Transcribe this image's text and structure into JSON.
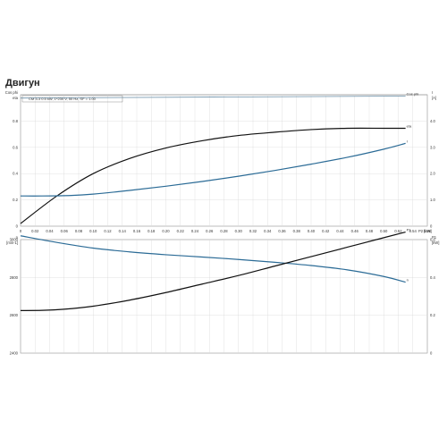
{
  "page": {
    "title": "Двигун"
  },
  "chart_data": [
    {
      "type": "line",
      "info": "CM 3-3   0.5 kW,  1*230 V, 50 Hz, SF = 1.00",
      "x_unit": "P2 [kW]",
      "x_ticks": [
        "0",
        "0.02",
        "0.04",
        "0.06",
        "0.08",
        "0.10",
        "0.12",
        "0.14",
        "0.16",
        "0.18",
        "0.20",
        "0.22",
        "0.24",
        "0.26",
        "0.28",
        "0.30",
        "0.32",
        "0.34",
        "0.36",
        "0.38",
        "0.40",
        "0.42",
        "0.44",
        "0.46",
        "0.48",
        "0.50",
        "0.52",
        "0.54",
        "0.56"
      ],
      "xlim": [
        0,
        0.56
      ],
      "left_axis": {
        "unit_top": "Cos phi",
        "unit_bottom": "eta",
        "ylim": [
          0,
          1.0
        ],
        "ticks": [
          "0",
          "0.2",
          "0.4",
          "0.6",
          "0.8"
        ]
      },
      "right_axis": {
        "unit_top": "I",
        "unit_bottom": "[A]",
        "ylim": [
          0,
          5.0
        ],
        "ticks": [
          "0",
          "1.0",
          "2.0",
          "3.0",
          "4.0"
        ]
      },
      "series": [
        {
          "name": "eta",
          "axis": "left",
          "color": "#111111",
          "x": [
            0,
            0.05,
            0.1,
            0.15,
            0.2,
            0.25,
            0.3,
            0.35,
            0.4,
            0.45,
            0.5,
            0.53
          ],
          "y": [
            0.02,
            0.23,
            0.4,
            0.515,
            0.595,
            0.65,
            0.69,
            0.715,
            0.735,
            0.745,
            0.745,
            0.745
          ]
        },
        {
          "name": "I",
          "axis": "right",
          "color": "#2b6b96",
          "x": [
            0,
            0.03,
            0.07,
            0.1,
            0.15,
            0.2,
            0.25,
            0.3,
            0.35,
            0.4,
            0.45,
            0.5,
            0.53
          ],
          "y": [
            1.15,
            1.15,
            1.17,
            1.22,
            1.36,
            1.52,
            1.7,
            1.9,
            2.12,
            2.36,
            2.62,
            2.93,
            3.15
          ]
        },
        {
          "name": "Cos phi",
          "axis": "left",
          "color": "#6a8fa8",
          "x": [
            0,
            0.53
          ],
          "y": [
            0.975,
            0.99
          ]
        }
      ]
    },
    {
      "type": "line",
      "left_axis": {
        "unit_top": "n",
        "unit_bottom": "[min-1]",
        "ylim": [
          2400,
          3000
        ],
        "ticks": [
          "2400",
          "2600",
          "2800",
          "3000"
        ]
      },
      "right_axis": {
        "unit_top": "P1",
        "unit_bottom": "[kW]",
        "ylim": [
          0,
          0.6
        ],
        "ticks": [
          "0",
          "0.2",
          "0.4",
          "0.6"
        ]
      },
      "xlim": [
        0,
        0.56
      ],
      "series": [
        {
          "name": "n",
          "axis": "left",
          "color": "#2b6b96",
          "x": [
            0,
            0.05,
            0.1,
            0.15,
            0.2,
            0.25,
            0.3,
            0.35,
            0.4,
            0.45,
            0.5,
            0.53
          ],
          "y": [
            3020,
            2985,
            2955,
            2935,
            2920,
            2908,
            2895,
            2880,
            2863,
            2840,
            2805,
            2775
          ]
        },
        {
          "name": "P1",
          "axis": "right",
          "color": "#111111",
          "x": [
            0,
            0.03,
            0.06,
            0.1,
            0.15,
            0.2,
            0.25,
            0.3,
            0.35,
            0.4,
            0.45,
            0.5,
            0.53
          ],
          "y": [
            0.225,
            0.226,
            0.232,
            0.248,
            0.28,
            0.32,
            0.365,
            0.41,
            0.46,
            0.51,
            0.56,
            0.61,
            0.64
          ]
        }
      ]
    }
  ]
}
